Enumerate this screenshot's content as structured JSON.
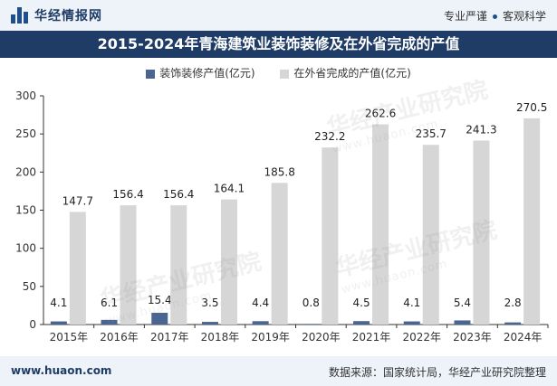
{
  "header": {
    "brand": "华经情报网",
    "tag1": "专业严谨",
    "tag2": "客观科学"
  },
  "footer": {
    "website": "www.huaon.com",
    "source": "数据来源：国家统计局，华经产业研究院整理"
  },
  "watermark": {
    "text": "华经产业研究院",
    "url": "www.huaon.com"
  },
  "colors": {
    "header_bg": "#eef3fa",
    "title_bg": "#1f3c66",
    "series1": "#4a6591",
    "series2": "#d6d6d6"
  },
  "chart_data": {
    "type": "bar",
    "title": "2015-2024年青海建筑业装饰装修及在外省完成的产值",
    "categories": [
      "2015年",
      "2016年",
      "2017年",
      "2018年",
      "2019年",
      "2020年",
      "2021年",
      "2022年",
      "2023年",
      "2024年"
    ],
    "series": [
      {
        "name": "装饰装修产值(亿元)",
        "values": [
          4.1,
          6.1,
          15.4,
          3.5,
          4.4,
          0.8,
          4.5,
          4.1,
          5.4,
          2.8
        ]
      },
      {
        "name": "在外省完成的产值(亿元)",
        "values": [
          147.7,
          156.4,
          156.4,
          164.1,
          185.8,
          232.2,
          262.6,
          235.7,
          241.3,
          270.5
        ]
      }
    ],
    "ylim": [
      0,
      300
    ],
    "yticks": [
      0,
      50,
      100,
      150,
      200,
      250,
      300
    ],
    "legend_position": "top-center",
    "grid": false
  }
}
